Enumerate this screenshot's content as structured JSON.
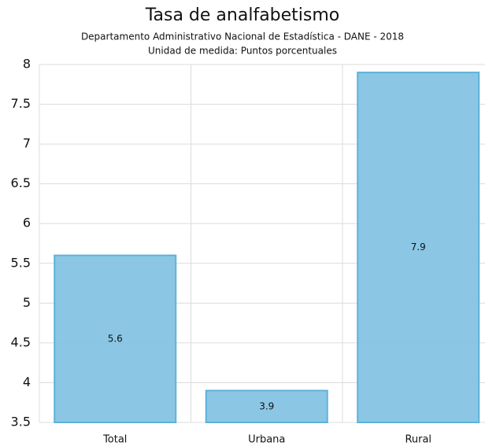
{
  "chart_data": {
    "type": "bar",
    "title": "Tasa de analfabetismo",
    "subtitle": [
      "Departamento Administrativo Nacional de Estadística - DANE - 2018",
      "Unidad de medida: Puntos porcentuales"
    ],
    "categories": [
      "Total",
      "Urbana",
      "Rural"
    ],
    "values": [
      5.6,
      3.9,
      7.9
    ],
    "color": "#85c4e4",
    "ylim": [
      3.5,
      8
    ],
    "yticks": [
      3.5,
      4,
      4.5,
      5,
      5.5,
      6,
      6.5,
      7,
      7.5,
      8
    ],
    "grid": true
  }
}
